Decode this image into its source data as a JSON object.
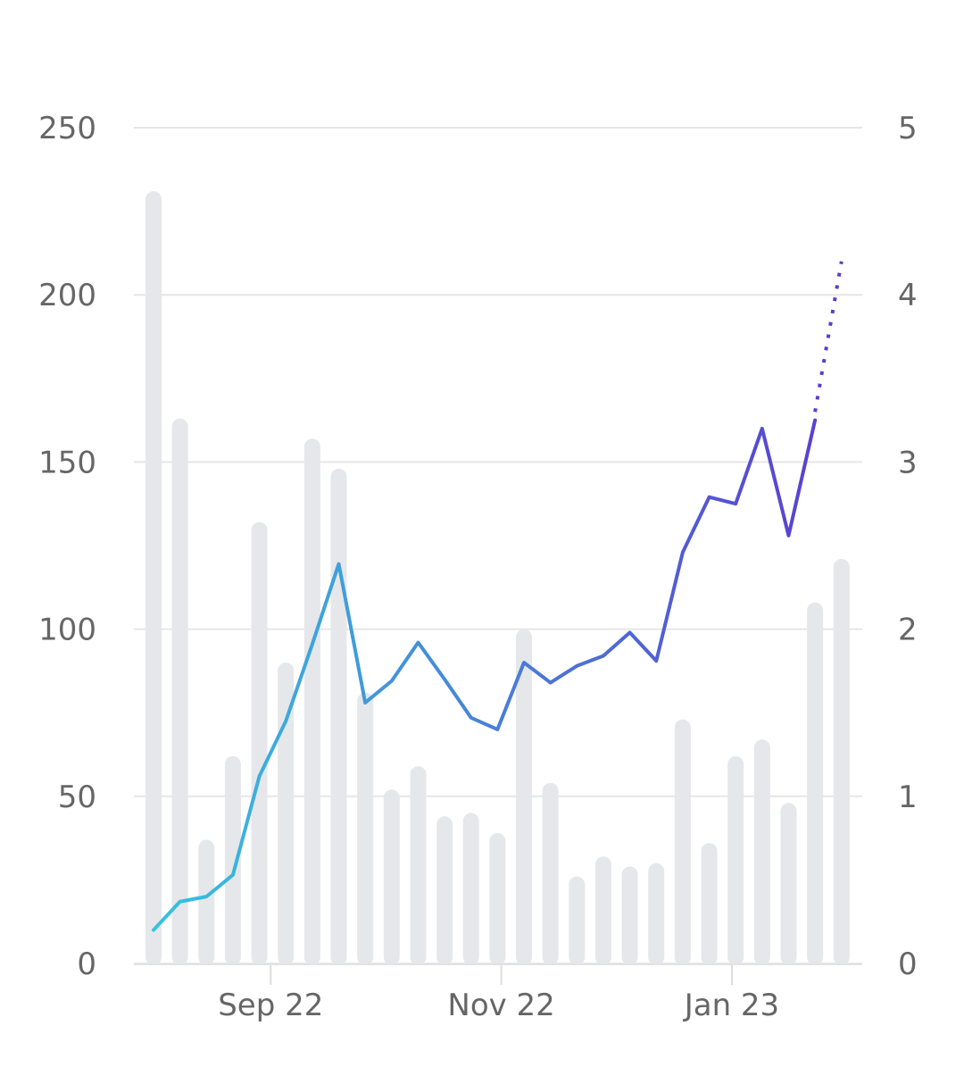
{
  "chart_data": {
    "type": "bar+line",
    "title": "",
    "xlabel": "",
    "ylabel_left": "",
    "ylabel_right": "",
    "ylim_left": [
      0,
      250
    ],
    "ylim_right": [
      0,
      5
    ],
    "yticks_left": [
      "0",
      "50",
      "100",
      "150",
      "200",
      "250"
    ],
    "yticks_right": [
      "0",
      "1",
      "2",
      "3",
      "4",
      "5"
    ],
    "xticks": [
      {
        "date": "2022-09-01",
        "label": "Sep 22"
      },
      {
        "date": "2022-11-01",
        "label": "Nov 22"
      },
      {
        "date": "2023-01-01",
        "label": "Jan 23"
      }
    ],
    "grid": true,
    "x": [
      "2022-08-01",
      "2022-08-08",
      "2022-08-15",
      "2022-08-22",
      "2022-08-29",
      "2022-09-05",
      "2022-09-12",
      "2022-09-19",
      "2022-09-26",
      "2022-10-03",
      "2022-10-10",
      "2022-10-17",
      "2022-10-24",
      "2022-10-31",
      "2022-11-07",
      "2022-11-14",
      "2022-11-21",
      "2022-11-28",
      "2022-12-05",
      "2022-12-12",
      "2022-12-19",
      "2022-12-26",
      "2023-01-02",
      "2023-01-09",
      "2023-01-16",
      "2023-01-23",
      "2023-01-30"
    ],
    "series": [
      {
        "type": "bar",
        "axis": "left",
        "color": "#e5e7ea",
        "values": [
          231,
          163,
          37,
          62,
          132,
          90,
          157,
          148,
          81,
          52,
          59,
          44,
          45,
          39,
          100,
          54,
          26,
          32,
          29,
          30,
          73,
          36,
          62,
          67,
          48,
          108,
          121
        ]
      },
      {
        "type": "line",
        "axis": "right",
        "color_start": "#36c3df",
        "color_end": "#5b3cd0",
        "values": [
          0.2,
          0.37,
          0.4,
          0.53,
          1.12,
          1.45,
          1.91,
          2.39,
          1.56,
          1.69,
          1.92,
          1.7,
          1.47,
          1.4,
          1.8,
          1.68,
          1.78,
          1.84,
          1.98,
          1.81,
          2.46,
          2.79,
          2.75,
          3.2,
          2.56,
          3.25,
          null
        ],
        "projected": {
          "from": "2023-01-23",
          "to": "2023-01-30",
          "values": [
            3.3,
            4.2
          ],
          "style": "dotted"
        }
      }
    ]
  }
}
